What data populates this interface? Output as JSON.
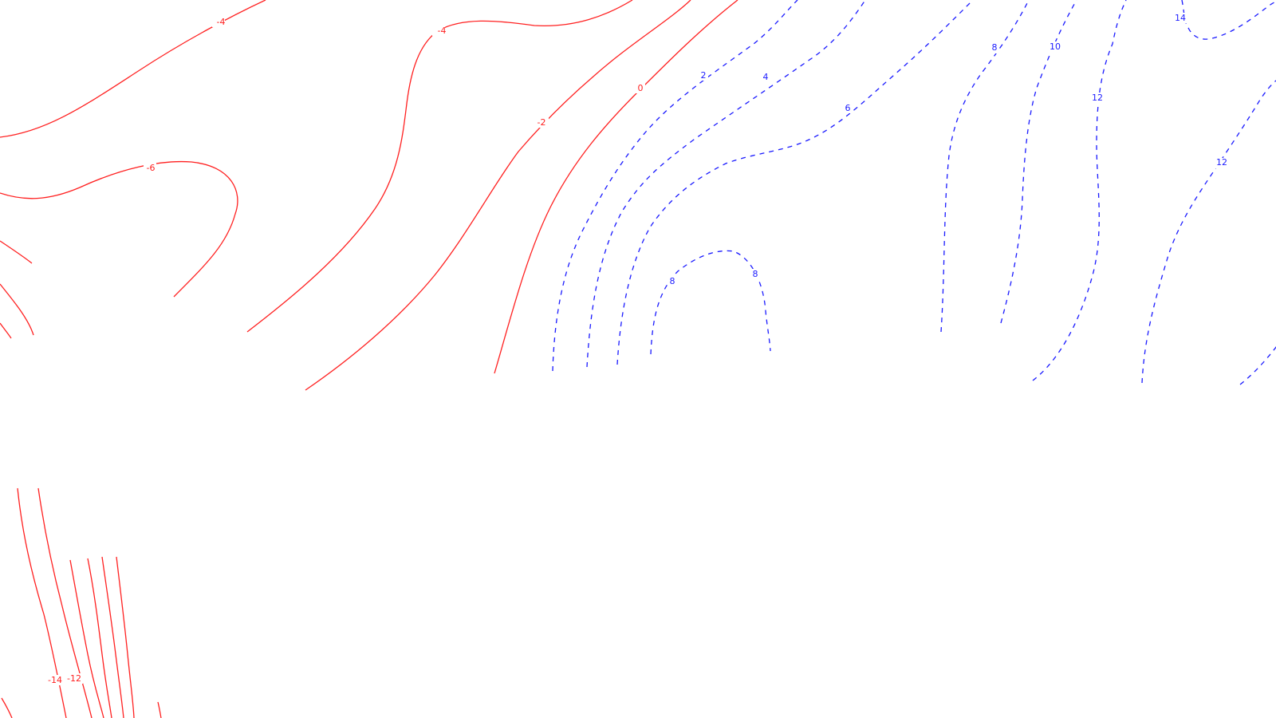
{
  "map": {
    "colors": {
      "negative": "#ff2020",
      "positive": "#1a1aff",
      "background": "#ffffff"
    },
    "line_styles": {
      "negative": "solid",
      "positive": "dashed"
    },
    "labels": [
      {
        "id": "neg4-a",
        "text": "-4",
        "sign": "neg"
      },
      {
        "id": "neg4-b",
        "text": "-4",
        "sign": "neg"
      },
      {
        "id": "neg6",
        "text": "-6",
        "sign": "neg"
      },
      {
        "id": "neg2",
        "text": "-2",
        "sign": "neg"
      },
      {
        "id": "zero",
        "text": "0",
        "sign": "neg"
      },
      {
        "id": "pos2",
        "text": "2",
        "sign": "pos"
      },
      {
        "id": "pos4",
        "text": "4",
        "sign": "pos"
      },
      {
        "id": "pos6",
        "text": "6",
        "sign": "pos"
      },
      {
        "id": "pos8-a",
        "text": "8",
        "sign": "pos"
      },
      {
        "id": "pos8-b",
        "text": "8",
        "sign": "pos"
      },
      {
        "id": "pos8-c",
        "text": "8",
        "sign": "pos"
      },
      {
        "id": "pos10",
        "text": "10",
        "sign": "pos"
      },
      {
        "id": "pos12-a",
        "text": "12",
        "sign": "pos"
      },
      {
        "id": "pos12-b",
        "text": "12",
        "sign": "pos"
      },
      {
        "id": "pos14",
        "text": "14",
        "sign": "pos"
      },
      {
        "id": "neg14",
        "text": "-14",
        "sign": "neg"
      },
      {
        "id": "neg12",
        "text": "-12",
        "sign": "neg"
      }
    ]
  }
}
